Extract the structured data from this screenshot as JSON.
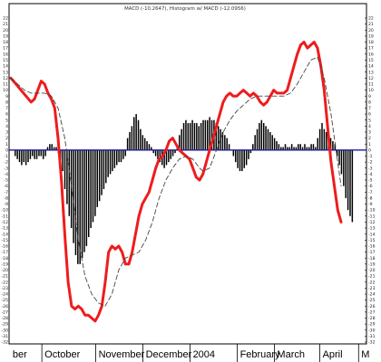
{
  "chart_data": {
    "type": "line",
    "title": "MACD (-10.2647), Histogram w/ MACD (-12.0956)",
    "y_ticks": [
      22,
      21,
      20,
      19,
      18,
      17,
      16,
      15,
      14,
      13,
      12,
      11,
      10,
      9,
      8,
      7,
      6,
      5,
      4,
      3,
      2,
      1,
      0,
      -1,
      -2,
      -3,
      -4,
      -5,
      -6,
      -7,
      -8,
      -9,
      -10,
      -11,
      -12,
      -13,
      -14,
      -15,
      -16,
      -17,
      -18,
      -19,
      -20,
      -21,
      -22,
      -23,
      -24,
      -25,
      -26,
      -27,
      -28,
      -29,
      -30,
      -31,
      -32
    ],
    "ylim": [
      -32,
      22
    ],
    "x_month_labels": [
      "ber",
      "October",
      "November",
      "December",
      "2004",
      "February",
      "March",
      "April",
      "M"
    ],
    "x_month_positions": [
      1,
      20,
      52,
      80,
      108,
      136,
      158,
      185,
      208
    ],
    "x_range": [
      0,
      210
    ],
    "series": [
      {
        "style": "thick-red-line",
        "color": "#ee1c1c",
        "points": [
          [
            0,
            12
          ],
          [
            3,
            11
          ],
          [
            6,
            10
          ],
          [
            9,
            9
          ],
          [
            12,
            8
          ],
          [
            14,
            8.5
          ],
          [
            16,
            10
          ],
          [
            18,
            11.5
          ],
          [
            20,
            11
          ],
          [
            22,
            9.5
          ],
          [
            24,
            8.5
          ],
          [
            26,
            7
          ],
          [
            28,
            2
          ],
          [
            30,
            -5
          ],
          [
            32,
            -14
          ],
          [
            34,
            -22
          ],
          [
            36,
            -26
          ],
          [
            38,
            -26.5
          ],
          [
            40,
            -26
          ],
          [
            42,
            -26.5
          ],
          [
            44,
            -27.5
          ],
          [
            46,
            -27.5
          ],
          [
            48,
            -28
          ],
          [
            50,
            -28.5
          ],
          [
            52,
            -27.5
          ],
          [
            54,
            -26
          ],
          [
            56,
            -22
          ],
          [
            58,
            -17
          ],
          [
            60,
            -16
          ],
          [
            62,
            -16.5
          ],
          [
            64,
            -16
          ],
          [
            66,
            -17
          ],
          [
            68,
            -19
          ],
          [
            70,
            -19
          ],
          [
            72,
            -17
          ],
          [
            74,
            -14
          ],
          [
            76,
            -11
          ],
          [
            78,
            -9
          ],
          [
            80,
            -8
          ],
          [
            82,
            -7
          ],
          [
            84,
            -5
          ],
          [
            86,
            -3
          ],
          [
            88,
            -1.5
          ],
          [
            90,
            -1
          ],
          [
            92,
            0
          ],
          [
            94,
            1.5
          ],
          [
            96,
            2
          ],
          [
            98,
            1
          ],
          [
            100,
            0
          ],
          [
            102,
            -0.5
          ],
          [
            104,
            -1
          ],
          [
            106,
            -1.5
          ],
          [
            108,
            -3
          ],
          [
            110,
            -4.5
          ],
          [
            112,
            -5
          ],
          [
            114,
            -4
          ],
          [
            116,
            -2
          ],
          [
            118,
            0
          ],
          [
            120,
            2
          ],
          [
            122,
            4
          ],
          [
            124,
            6
          ],
          [
            126,
            8
          ],
          [
            128,
            9
          ],
          [
            130,
            9.5
          ],
          [
            132,
            9
          ],
          [
            134,
            9
          ],
          [
            136,
            9.5
          ],
          [
            138,
            10
          ],
          [
            140,
            9.5
          ],
          [
            142,
            9
          ],
          [
            144,
            9.5
          ],
          [
            146,
            9
          ],
          [
            148,
            8
          ],
          [
            150,
            7.5
          ],
          [
            152,
            8
          ],
          [
            154,
            9
          ],
          [
            156,
            10
          ],
          [
            158,
            9.5
          ],
          [
            160,
            9.5
          ],
          [
            162,
            9.5
          ],
          [
            164,
            10
          ],
          [
            166,
            12
          ],
          [
            168,
            14
          ],
          [
            170,
            16
          ],
          [
            172,
            17.5
          ],
          [
            174,
            18
          ],
          [
            176,
            17
          ],
          [
            178,
            17.5
          ],
          [
            180,
            18
          ],
          [
            182,
            17
          ],
          [
            184,
            14
          ],
          [
            186,
            10
          ],
          [
            188,
            4
          ],
          [
            190,
            -2
          ],
          [
            192,
            -6
          ],
          [
            194,
            -10
          ],
          [
            196,
            -12
          ]
        ]
      },
      {
        "style": "dashed-signal-line",
        "color": "#444444",
        "points": [
          [
            0,
            12
          ],
          [
            4,
            11
          ],
          [
            8,
            10
          ],
          [
            12,
            9.5
          ],
          [
            16,
            9.5
          ],
          [
            20,
            9.5
          ],
          [
            24,
            9
          ],
          [
            28,
            7
          ],
          [
            32,
            2
          ],
          [
            36,
            -6
          ],
          [
            40,
            -15
          ],
          [
            44,
            -21
          ],
          [
            48,
            -24
          ],
          [
            52,
            -25.5
          ],
          [
            56,
            -26
          ],
          [
            60,
            -24
          ],
          [
            64,
            -20
          ],
          [
            68,
            -18
          ],
          [
            72,
            -17.5
          ],
          [
            76,
            -17
          ],
          [
            80,
            -15
          ],
          [
            84,
            -12
          ],
          [
            88,
            -8
          ],
          [
            92,
            -5
          ],
          [
            96,
            -3
          ],
          [
            100,
            -1.5
          ],
          [
            104,
            -1
          ],
          [
            108,
            -1.5
          ],
          [
            112,
            -3
          ],
          [
            114,
            -3.5
          ],
          [
            118,
            -3
          ],
          [
            122,
            0
          ],
          [
            126,
            3
          ],
          [
            130,
            5
          ],
          [
            134,
            6.5
          ],
          [
            138,
            7.5
          ],
          [
            142,
            8.5
          ],
          [
            146,
            9
          ],
          [
            150,
            9
          ],
          [
            154,
            9
          ],
          [
            158,
            9
          ],
          [
            162,
            9
          ],
          [
            166,
            9.5
          ],
          [
            170,
            11
          ],
          [
            174,
            13
          ],
          [
            178,
            15
          ],
          [
            182,
            15.5
          ],
          [
            186,
            12
          ],
          [
            190,
            6
          ],
          [
            194,
            -2
          ],
          [
            196,
            -6
          ]
        ]
      }
    ],
    "histogram": {
      "style": "bars",
      "color": "#000000",
      "baseline": 0,
      "values": [
        -1,
        -1.5,
        -2,
        -2.5,
        -2,
        -2.5,
        -2,
        -1.5,
        -1,
        -1.5,
        -1.5,
        -1,
        -1,
        -1.5,
        -1,
        0.5,
        1,
        1,
        0.5,
        0.5,
        -0.5,
        -2,
        -3.5,
        -6.5,
        -9,
        -11,
        -13,
        -15.5,
        -17.5,
        -19,
        -19,
        -18,
        -17,
        -16,
        -14.5,
        -13,
        -12,
        -11,
        -9.5,
        -8.5,
        -7.5,
        -6.5,
        -5.5,
        -4.5,
        -4,
        -3.5,
        -3,
        -2.5,
        -2,
        -2,
        -1.5,
        -1,
        2,
        3,
        4,
        5.5,
        6,
        5,
        3.5,
        2.5,
        2,
        1.5,
        1,
        0.5,
        -0.5,
        -1,
        -1.5,
        -2,
        -2.5,
        -3,
        -2.5,
        -2,
        -1.5,
        -1,
        -0.5,
        0.5,
        2.5,
        3.5,
        4.5,
        5,
        4.5,
        4.5,
        5,
        4.5,
        4.5,
        4,
        4.5,
        5,
        5,
        5,
        5.5,
        5,
        5,
        4.5,
        4,
        3.5,
        3,
        2.5,
        2,
        1,
        0,
        -1,
        -2,
        -3,
        -3.5,
        -3.5,
        -3,
        -2.5,
        -1.5,
        -0.5,
        1,
        2.5,
        3.5,
        4.5,
        5,
        4.5,
        4,
        3.5,
        3,
        2.5,
        2,
        1.5,
        1,
        0.5,
        0.5,
        1,
        0.5,
        0.5,
        1,
        0.5,
        0.5,
        1,
        1,
        0.5,
        1,
        0.5,
        0.5,
        1,
        1,
        0.5,
        2,
        3.5,
        4.5,
        3.5,
        3,
        2.5,
        2,
        1.5,
        1,
        -1,
        -2.5,
        -4,
        -6,
        -8,
        -10,
        -11,
        -12
      ]
    }
  },
  "colors": {
    "background": "#ffffff",
    "zero_line": "#1a1aa0",
    "macd": "#ee1c1c",
    "signal": "#444444",
    "histogram": "#000000",
    "axis": "#000000"
  }
}
